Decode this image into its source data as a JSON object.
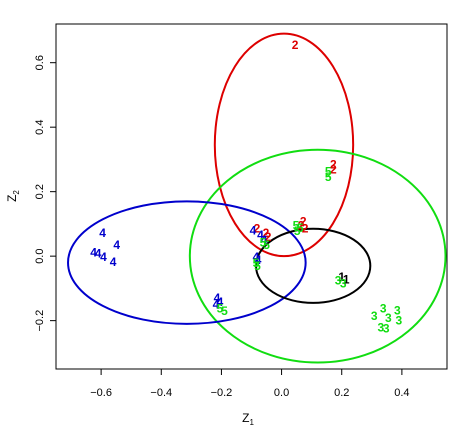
{
  "chart_data": {
    "type": "scatter",
    "title": "",
    "xlabel": "Z",
    "xlabel_sub": "1",
    "ylabel": "Z",
    "ylabel_sub": "2",
    "xlim": [
      -0.75,
      0.55
    ],
    "ylim": [
      -0.35,
      0.72
    ],
    "x_ticks": [
      -0.6,
      -0.4,
      -0.2,
      0.0,
      0.2,
      0.4
    ],
    "x_tick_labels": [
      "−0.6",
      "−0.4",
      "−0.2",
      "0.0",
      "0.2",
      "0.4"
    ],
    "y_ticks": [
      -0.2,
      0.0,
      0.2,
      0.4,
      0.6
    ],
    "y_tick_labels": [
      "−0.2",
      "0.0",
      "0.2",
      "0.4",
      "0.6"
    ],
    "grid": false,
    "colors": {
      "red": "#dd0000",
      "green": "#11dd11",
      "blue": "#0000cc",
      "black": "#000000"
    },
    "ellipses": [
      {
        "color": "#dd0000",
        "cx": 0.008,
        "cy": 0.345,
        "rx": 0.23,
        "ry": 0.345
      },
      {
        "color": "#11dd11",
        "cx": 0.12,
        "cy": 0.0,
        "rx": 0.425,
        "ry": 0.33
      },
      {
        "color": "#0000cc",
        "cx": -0.315,
        "cy": -0.02,
        "rx": 0.395,
        "ry": 0.19
      },
      {
        "color": "#000000",
        "cx": 0.105,
        "cy": -0.03,
        "rx": 0.19,
        "ry": 0.115
      }
    ],
    "points": [
      {
        "label": "2",
        "color": "#dd0000",
        "x": 0.045,
        "y": 0.655
      },
      {
        "label": "2",
        "color": "#dd0000",
        "x": 0.172,
        "y": 0.285
      },
      {
        "label": "2",
        "color": "#dd0000",
        "x": 0.172,
        "y": 0.268
      },
      {
        "label": "5",
        "color": "#11dd11",
        "x": 0.155,
        "y": 0.262
      },
      {
        "label": "5",
        "color": "#11dd11",
        "x": 0.155,
        "y": 0.245
      },
      {
        "label": "2",
        "color": "#dd0000",
        "x": 0.072,
        "y": 0.108
      },
      {
        "label": "2",
        "color": "#dd0000",
        "x": 0.065,
        "y": 0.095
      },
      {
        "label": "2",
        "color": "#dd0000",
        "x": 0.078,
        "y": 0.085
      },
      {
        "label": "5",
        "color": "#11dd11",
        "x": 0.048,
        "y": 0.095
      },
      {
        "label": "5",
        "color": "#11dd11",
        "x": 0.052,
        "y": 0.078
      },
      {
        "label": "5",
        "color": "#11dd11",
        "x": 0.062,
        "y": 0.088
      },
      {
        "label": "2",
        "color": "#dd0000",
        "x": -0.082,
        "y": 0.085
      },
      {
        "label": "2",
        "color": "#dd0000",
        "x": -0.052,
        "y": 0.072
      },
      {
        "label": "2",
        "color": "#dd0000",
        "x": -0.045,
        "y": 0.06
      },
      {
        "label": "4",
        "color": "#0000cc",
        "x": -0.095,
        "y": 0.08
      },
      {
        "label": "4",
        "color": "#0000cc",
        "x": -0.07,
        "y": 0.065
      },
      {
        "label": "4",
        "color": "#0000cc",
        "x": -0.058,
        "y": 0.05
      },
      {
        "label": "5",
        "color": "#11dd11",
        "x": -0.062,
        "y": 0.042
      },
      {
        "label": "5",
        "color": "#11dd11",
        "x": -0.05,
        "y": 0.035
      },
      {
        "label": "4",
        "color": "#0000cc",
        "x": -0.085,
        "y": -0.002
      },
      {
        "label": "4",
        "color": "#0000cc",
        "x": -0.078,
        "y": -0.012
      },
      {
        "label": "5",
        "color": "#11dd11",
        "x": -0.085,
        "y": -0.022
      },
      {
        "label": "5",
        "color": "#11dd11",
        "x": -0.08,
        "y": -0.03
      },
      {
        "label": "4",
        "color": "#0000cc",
        "x": -0.595,
        "y": 0.072
      },
      {
        "label": "4",
        "color": "#0000cc",
        "x": -0.548,
        "y": 0.035
      },
      {
        "label": "4",
        "color": "#0000cc",
        "x": -0.625,
        "y": 0.012
      },
      {
        "label": "4",
        "color": "#0000cc",
        "x": -0.61,
        "y": 0.008
      },
      {
        "label": "4",
        "color": "#0000cc",
        "x": -0.592,
        "y": -0.002
      },
      {
        "label": "4",
        "color": "#0000cc",
        "x": -0.56,
        "y": -0.018
      },
      {
        "label": "4",
        "color": "#0000cc",
        "x": -0.215,
        "y": -0.13
      },
      {
        "label": "4",
        "color": "#0000cc",
        "x": -0.205,
        "y": -0.142
      },
      {
        "label": "4",
        "color": "#0000cc",
        "x": -0.218,
        "y": -0.15
      },
      {
        "label": "5",
        "color": "#11dd11",
        "x": -0.205,
        "y": -0.162
      },
      {
        "label": "5",
        "color": "#11dd11",
        "x": -0.19,
        "y": -0.17
      },
      {
        "label": "1",
        "color": "#000000",
        "x": 0.2,
        "y": -0.065
      },
      {
        "label": "1",
        "color": "#000000",
        "x": 0.215,
        "y": -0.072
      },
      {
        "label": "3",
        "color": "#11dd11",
        "x": 0.188,
        "y": -0.075
      },
      {
        "label": "3",
        "color": "#11dd11",
        "x": 0.205,
        "y": -0.085
      },
      {
        "label": "3",
        "color": "#11dd11",
        "x": 0.338,
        "y": -0.162
      },
      {
        "label": "3",
        "color": "#11dd11",
        "x": 0.385,
        "y": -0.168
      },
      {
        "label": "3",
        "color": "#11dd11",
        "x": 0.308,
        "y": -0.185
      },
      {
        "label": "3",
        "color": "#11dd11",
        "x": 0.355,
        "y": -0.192
      },
      {
        "label": "3",
        "color": "#11dd11",
        "x": 0.39,
        "y": -0.2
      },
      {
        "label": "3",
        "color": "#11dd11",
        "x": 0.33,
        "y": -0.222
      },
      {
        "label": "3",
        "color": "#11dd11",
        "x": 0.348,
        "y": -0.225
      }
    ]
  }
}
